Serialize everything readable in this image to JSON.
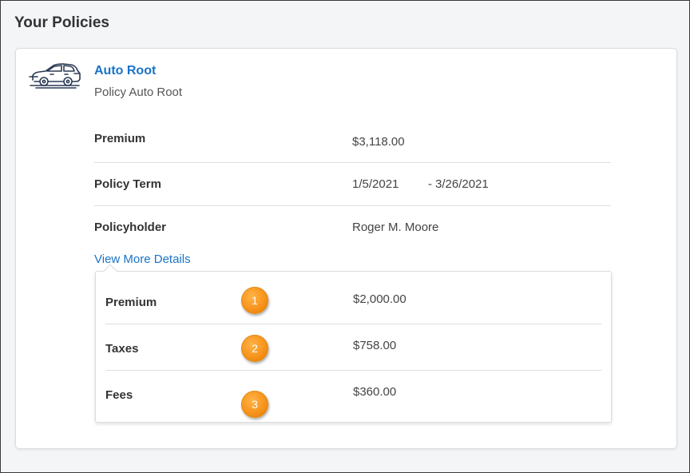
{
  "page": {
    "title": "Your Policies"
  },
  "policy": {
    "icon": "car-icon",
    "name": "Auto Root",
    "subtitle": "Policy Auto Root",
    "rows": {
      "premium": {
        "label": "Premium",
        "value": "$3,118.00"
      },
      "term": {
        "label": "Policy Term",
        "start": "1/5/2021",
        "separator": "-",
        "end": "3/26/2021"
      },
      "policyholder": {
        "label": "Policyholder",
        "value": "Roger M. Moore"
      }
    },
    "details_link": "View More Details",
    "details": {
      "premium": {
        "label": "Premium",
        "value": "$2,000.00",
        "badge": "1"
      },
      "taxes": {
        "label": "Taxes",
        "value": "$758.00",
        "badge": "2"
      },
      "fees": {
        "label": "Fees",
        "value": "$360.00",
        "badge": "3"
      }
    }
  },
  "colors": {
    "link": "#1a73c8",
    "badge": "#f7941d",
    "icon_stroke": "#2b3a55"
  }
}
